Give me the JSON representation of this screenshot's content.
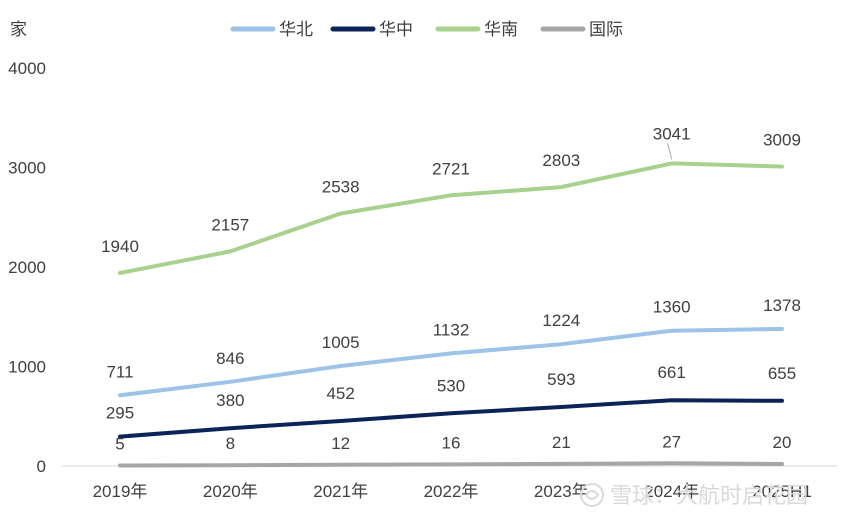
{
  "chart_data": {
    "type": "line",
    "unit_label": "家",
    "categories": [
      "2019年",
      "2020年",
      "2021年",
      "2022年",
      "2023年",
      "2024年",
      "2025H1"
    ],
    "ylim": [
      0,
      4000
    ],
    "yticks": [
      0,
      1000,
      2000,
      3000,
      4000
    ],
    "legend_position": "top-center",
    "grid": false,
    "series": [
      {
        "name": "华北",
        "color": "#9dc3e6",
        "values": [
          711,
          846,
          1005,
          1132,
          1224,
          1360,
          1378
        ]
      },
      {
        "name": "华中",
        "color": "#0b2356",
        "values": [
          295,
          380,
          452,
          530,
          593,
          661,
          655
        ]
      },
      {
        "name": "华南",
        "color": "#a9d18e",
        "values": [
          1940,
          2157,
          2538,
          2721,
          2803,
          3041,
          3009
        ]
      },
      {
        "name": "国际",
        "color": "#a6a6a6",
        "values": [
          5,
          8,
          12,
          16,
          21,
          27,
          20
        ]
      }
    ]
  },
  "watermark": "雪球：大航时启花园"
}
